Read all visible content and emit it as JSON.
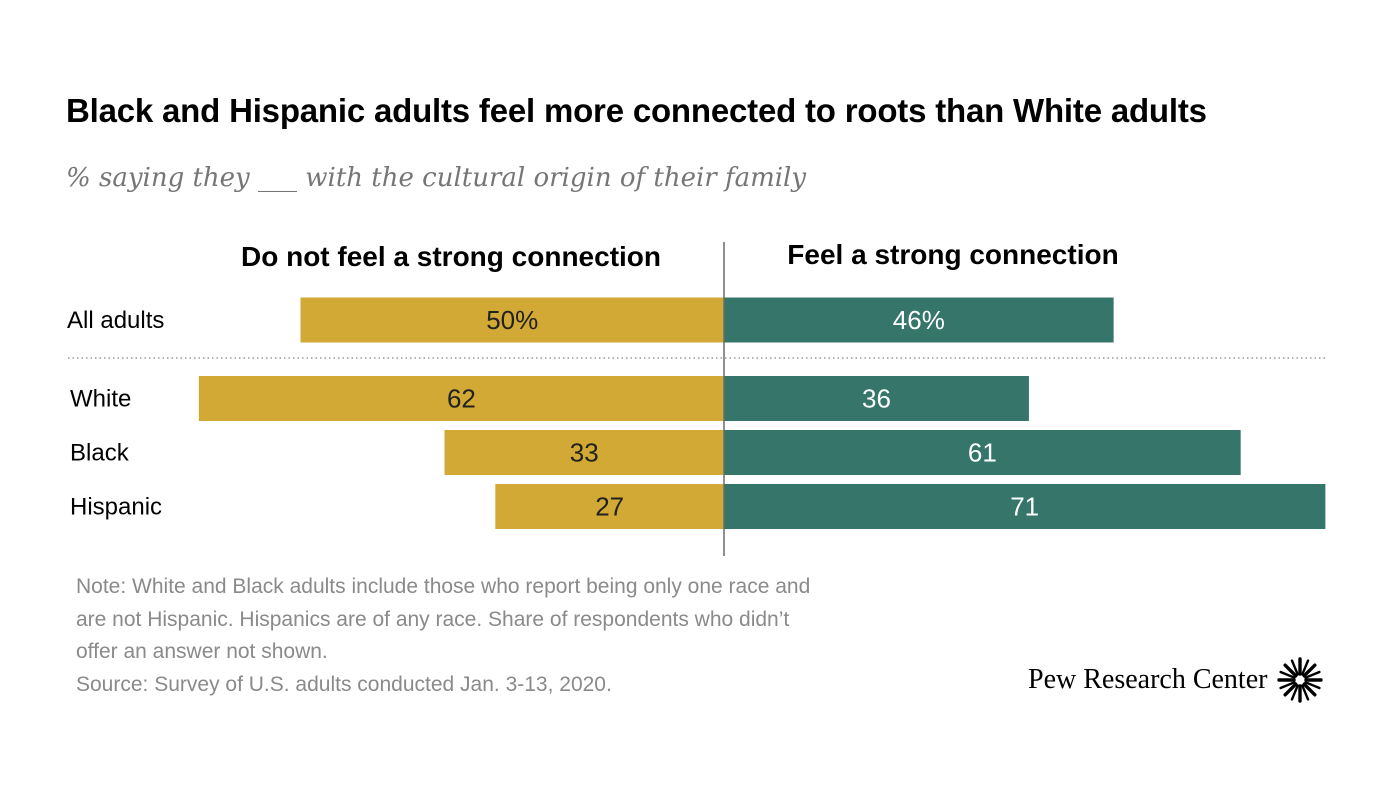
{
  "title": "Black and Hispanic adults feel more connected to roots than White adults",
  "subtitle": "% saying they ___ with the cultural origin of their family",
  "chart_data": {
    "type": "bar",
    "orientation": "horizontal-diverging",
    "series": [
      {
        "name": "Do not feel a strong connection",
        "direction": "left",
        "color": "#D1A934",
        "labels": [
          "50%",
          "62",
          "33",
          "27"
        ],
        "values": [
          50,
          62,
          33,
          27
        ]
      },
      {
        "name": "Feel a strong connection",
        "direction": "right",
        "color": "#35756A",
        "labels": [
          "46%",
          "36",
          "61",
          "71"
        ],
        "values": [
          46,
          36,
          61,
          71
        ]
      }
    ],
    "categories": [
      "All adults",
      "White",
      "Black",
      "Hispanic"
    ],
    "group_separator_after": 0,
    "grid": false,
    "legend": "column headers above bars"
  },
  "notes": [
    "Note: White and Black adults include those who report being only one race and",
    "are not Hispanic. Hispanics are of any race. Share of respondents who didn’t",
    "offer an answer not shown.",
    "Source: Survey of U.S. adults conducted Jan. 3-13, 2020."
  ],
  "brand": {
    "name": "Pew Research Center",
    "logo_icon": "pew-sunburst-icon"
  }
}
